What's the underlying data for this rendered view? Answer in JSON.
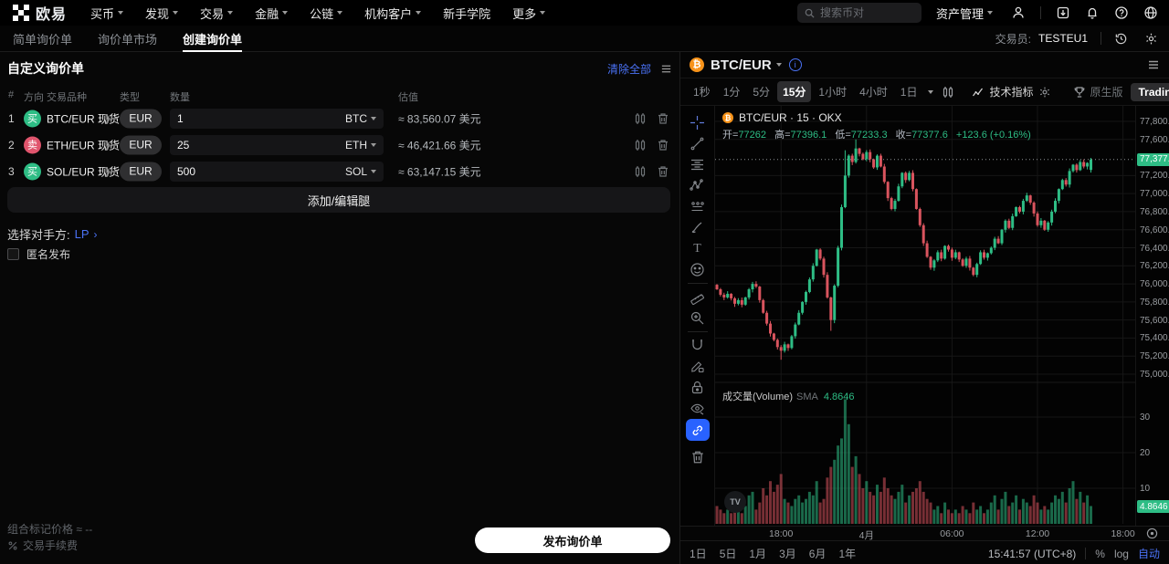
{
  "topnav": {
    "brand": "欧易",
    "menu": [
      {
        "label": "买币"
      },
      {
        "label": "发现"
      },
      {
        "label": "交易"
      },
      {
        "label": "金融"
      },
      {
        "label": "公链"
      },
      {
        "label": "机构客户"
      },
      {
        "label": "新手学院"
      },
      {
        "label": "更多"
      }
    ],
    "search_placeholder": "搜索币对",
    "assets_label": "资产管理"
  },
  "subnav": {
    "tabs": [
      {
        "label": "简单询价单"
      },
      {
        "label": "询价单市场"
      },
      {
        "label": "创建询价单"
      }
    ],
    "trader_label": "交易员:",
    "trader_id": "TESTEU1"
  },
  "rfq": {
    "title": "自定义询价单",
    "clear_all": "清除全部",
    "columns": {
      "idx": "#",
      "side": "方向",
      "symbol": "交易品种",
      "type": "类型",
      "amount": "数量",
      "value": "估值"
    },
    "legs": [
      {
        "index": "1",
        "side": "买",
        "symbol": "BTC/EUR 现货",
        "type": "EUR",
        "amount": "1",
        "unit": "BTC",
        "value": "≈ 83,560.07 美元"
      },
      {
        "index": "2",
        "side": "卖",
        "symbol": "ETH/EUR 现货",
        "type": "EUR",
        "amount": "25",
        "unit": "ETH",
        "value": "≈ 46,421.66 美元"
      },
      {
        "index": "3",
        "side": "买",
        "symbol": "SOL/EUR 现货",
        "type": "EUR",
        "amount": "500",
        "unit": "SOL",
        "value": "≈ 63,147.15 美元"
      }
    ],
    "add_button": "添加/编辑腿",
    "counterparty_label": "选择对手方:",
    "counterparty_value": "LP",
    "counterparty_chevron": "›",
    "anonymous_label": "匿名发布",
    "mark_price_label": "组合标记价格",
    "mark_price_value": "≈ --",
    "fee_label": "交易手续费",
    "publish_button": "发布询价单"
  },
  "chart": {
    "pair": "BTC/EUR",
    "legend_title": "BTC/EUR · 15 · OKX",
    "ohlc_text": {
      "open": "开=77,262.0",
      "high": "高=77,396.1",
      "low": "低=77,233.3",
      "close": "收=77,377.6",
      "change": "+123.6 (+0.16%)"
    },
    "timeframes": [
      {
        "label": "1秒"
      },
      {
        "label": "1分"
      },
      {
        "label": "5分"
      },
      {
        "label": "15分",
        "active": true
      },
      {
        "label": "1小时"
      },
      {
        "label": "4小时"
      },
      {
        "label": "1日"
      }
    ],
    "indicators_label": "技术指标",
    "native_label": "原生版",
    "tv_label": "TradingView",
    "volume_title": "成交量(Volume)",
    "sma_label": "SMA",
    "sma_value": "4.8646",
    "last_price_label": "77,377.6",
    "last_volume_label": "4.8646",
    "ranges": [
      {
        "label": "1日"
      },
      {
        "label": "5日"
      },
      {
        "label": "1月"
      },
      {
        "label": "3月"
      },
      {
        "label": "6月"
      },
      {
        "label": "1年"
      }
    ],
    "clock": "15:41:57 (UTC+8)",
    "percent_label": "%",
    "log_label": "log",
    "auto_label": "自动"
  },
  "chart_data": {
    "type": "candlestick+volume",
    "pair": "BTC/EUR",
    "interval_minutes": 15,
    "exchange": "OKX",
    "last_price": 77377.6,
    "last_change": "+123.6 (+0.16%)",
    "last_candle": {
      "open": 77262.0,
      "high": 77396.1,
      "low": 77233.3,
      "close": 77377.6
    },
    "volume_sma": 4.8646,
    "price_axis_range": [
      75000,
      77800
    ],
    "price_ticks": [
      {
        "v": 77800,
        "l": "77,800.0"
      },
      {
        "v": 77600,
        "l": "77,600.0"
      },
      {
        "v": 77200,
        "l": "77,200.0"
      },
      {
        "v": 77000,
        "l": "77,000.0"
      },
      {
        "v": 76800,
        "l": "76,800.0"
      },
      {
        "v": 76600,
        "l": "76,600.0"
      },
      {
        "v": 76400,
        "l": "76,400.0"
      },
      {
        "v": 76200,
        "l": "76,200.0"
      },
      {
        "v": 76000,
        "l": "76,000.0"
      },
      {
        "v": 75800,
        "l": "75,800.0"
      },
      {
        "v": 75600,
        "l": "75,600.0"
      },
      {
        "v": 75400,
        "l": "75,400.0"
      },
      {
        "v": 75200,
        "l": "75,200.0"
      },
      {
        "v": 75000,
        "l": "75,000.0"
      }
    ],
    "volume_ticks": [
      {
        "v": 30,
        "l": "30"
      },
      {
        "v": 20,
        "l": "20"
      },
      {
        "v": 10,
        "l": "10"
      }
    ],
    "time_ticks": [
      {
        "i": 18,
        "l": "18:00"
      },
      {
        "i": 42,
        "l": "4月"
      },
      {
        "i": 66,
        "l": "06:00"
      },
      {
        "i": 90,
        "l": "12:00"
      },
      {
        "i": 114,
        "l": "18:00"
      }
    ],
    "open_first": 75990,
    "closes": [
      75940,
      75880,
      75850,
      75890,
      75840,
      75780,
      75820,
      75770,
      75850,
      75940,
      76000,
      75970,
      75820,
      75680,
      75560,
      75450,
      75380,
      75300,
      75260,
      75330,
      75290,
      75420,
      75550,
      75680,
      75800,
      75910,
      76050,
      76200,
      76380,
      76280,
      76100,
      75850,
      75600,
      75980,
      76400,
      76850,
      77200,
      77420,
      77350,
      77500,
      77440,
      77380,
      77460,
      77380,
      77290,
      77420,
      77300,
      77130,
      76950,
      76830,
      76920,
      77080,
      77230,
      77150,
      77230,
      77050,
      76830,
      76650,
      76450,
      76300,
      76180,
      76260,
      76350,
      76280,
      76420,
      76380,
      76290,
      76350,
      76270,
      76200,
      76280,
      76180,
      76100,
      76220,
      76350,
      76290,
      76340,
      76400,
      76500,
      76450,
      76600,
      76700,
      76620,
      76750,
      76850,
      76800,
      76920,
      76980,
      76900,
      76780,
      76650,
      76700,
      76600,
      76680,
      76800,
      76920,
      77050,
      77150,
      77100,
      77250,
      77320,
      77260,
      77350,
      77300,
      77340,
      77377.6
    ],
    "volumes": [
      5,
      4,
      3,
      4,
      3,
      6,
      4,
      3,
      5,
      8,
      9,
      4,
      6,
      10,
      8,
      12,
      9,
      11,
      14,
      7,
      6,
      5,
      7,
      8,
      6,
      7,
      9,
      8,
      12,
      6,
      7,
      13,
      16,
      18,
      22,
      24,
      35,
      28,
      16,
      19,
      14,
      10,
      12,
      9,
      8,
      11,
      9,
      13,
      10,
      8,
      7,
      9,
      11,
      6,
      8,
      9,
      10,
      12,
      9,
      7,
      6,
      4,
      5,
      3,
      6,
      4,
      3,
      4,
      3,
      5,
      4,
      3,
      6,
      4,
      5,
      3,
      4,
      6,
      8,
      4,
      7,
      9,
      5,
      6,
      8,
      4,
      7,
      6,
      5,
      8,
      6,
      4,
      5,
      4,
      6,
      8,
      7,
      9,
      6,
      10,
      12,
      7,
      9,
      6,
      8,
      5
    ],
    "overrides": {
      "18": {
        "low": 75160
      },
      "32": {
        "low": 75480
      },
      "36": {
        "high": 77480
      },
      "39": {
        "high": 77600
      },
      "105": {
        "open": 77262.0,
        "high": 77396.1,
        "low": 77233.3,
        "close": 77377.6
      }
    },
    "colors": {
      "up": "#2ebd85",
      "down": "#d9545e",
      "grid": "#161616",
      "accent_blue": "#4a72f5"
    }
  }
}
